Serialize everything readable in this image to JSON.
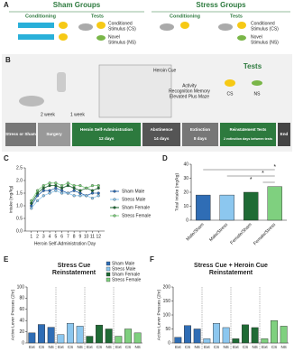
{
  "panel_labels": [
    "A",
    "B",
    "C",
    "D",
    "E",
    "F"
  ],
  "panel_a": {
    "sham_title": "Sham Groups",
    "stress_title": "Stress Groups",
    "conditioning": "Conditioning",
    "tests": "Tests",
    "legend": [
      {
        "line1": "Conditioned",
        "line2": "Stimulus (CS)"
      },
      {
        "line1": "Novel",
        "line2": "Stimulus (NS)"
      }
    ]
  },
  "panel_b": {
    "intervals": [
      "2 week",
      "1 week"
    ],
    "heroin_cue": "Heroin Cue",
    "tasks": [
      "Activity",
      "Recognition Memory",
      "Elevated Plus Maze"
    ],
    "tests_title": "Tests",
    "test_labels": [
      "CS",
      "NS"
    ],
    "stages": [
      {
        "label": "Stress or Sham"
      },
      {
        "label": "Surgery"
      },
      {
        "label": "Heroin Self-Administration",
        "duration": "12 days"
      },
      {
        "label": "Abstinence",
        "duration": "14 days"
      },
      {
        "label": "Extinction",
        "duration": "8 days"
      },
      {
        "label": "Reinstatement Tests",
        "duration": "2 extinction days between tests"
      },
      {
        "label": "End"
      }
    ]
  },
  "chart_data": [
    {
      "type": "line",
      "ylabel": "Intake (mg/kg)",
      "xlabel": "Heroin Self-Administration Day",
      "x": [
        1,
        2,
        3,
        4,
        5,
        6,
        7,
        8,
        9,
        10,
        11,
        12
      ],
      "xlim": [
        0,
        13
      ],
      "xticks": [
        1,
        2,
        3,
        4,
        5,
        6,
        7,
        8,
        9,
        10,
        11,
        12
      ],
      "ylim": [
        0,
        2.5
      ],
      "yticks": [
        {
          "value": 0,
          "label": "0.0"
        },
        0.5,
        {
          "value": 1,
          "label": "1.0"
        },
        1.5,
        {
          "value": 2,
          "label": "2.0"
        },
        2.5
      ],
      "series": [
        {
          "name": "Sham Male",
          "color": "#2f6db5",
          "values": [
            1.0,
            1.4,
            1.6,
            1.6,
            1.7,
            1.6,
            1.5,
            1.6,
            1.5,
            1.4,
            1.5,
            1.5
          ]
        },
        {
          "name": "Stress Male",
          "color": "#8cc7ef",
          "values": [
            0.9,
            1.2,
            1.4,
            1.5,
            1.6,
            1.5,
            1.5,
            1.4,
            1.4,
            1.4,
            1.3,
            1.4
          ]
        },
        {
          "name": "Sham Female",
          "color": "#1f6b35",
          "values": [
            1.1,
            1.5,
            1.7,
            1.8,
            1.8,
            1.7,
            1.8,
            1.7,
            1.6,
            1.7,
            1.6,
            1.7
          ]
        },
        {
          "name": "Stress Female",
          "color": "#7fd07f",
          "values": [
            1.2,
            1.6,
            1.8,
            1.9,
            1.9,
            1.8,
            1.9,
            1.8,
            1.8,
            1.7,
            1.8,
            1.8
          ]
        }
      ]
    },
    {
      "type": "bar",
      "ylabel": "Total Intake (mg/kg)",
      "categories": [
        "Male/Sham",
        "Male/Stress",
        "Female/Sham",
        "Female/Stress"
      ],
      "values": [
        18,
        18,
        20,
        24
      ],
      "colors": [
        "#2f6db5",
        "#8cc7ef",
        "#1f6b35",
        "#7fd07f"
      ],
      "ylim": [
        0,
        40
      ],
      "yticks": [
        0,
        10,
        20,
        30,
        40
      ],
      "annotations": [
        "*",
        "*",
        "*"
      ]
    },
    {
      "type": "grouped_bar",
      "title": "Stress Cue",
      "title2": "Reinstatement",
      "ylabel": "Active Lever Presses (2hr)",
      "legend": true,
      "categories": [
        "Ext",
        "CS",
        "NS"
      ],
      "ylim": [
        0,
        100
      ],
      "yticks": [
        0,
        20,
        40,
        60,
        80,
        100
      ],
      "series": [
        {
          "name": "Sham Male",
          "color": "#2f6db5",
          "values": [
            18,
            33,
            28
          ]
        },
        {
          "name": "Stress Male",
          "color": "#8cc7ef",
          "values": [
            15,
            35,
            30
          ]
        },
        {
          "name": "Sham Female",
          "color": "#1f6b35",
          "values": [
            12,
            32,
            25
          ]
        },
        {
          "name": "Stress Female",
          "color": "#7fd07f",
          "values": [
            12,
            25,
            18
          ]
        }
      ]
    },
    {
      "type": "grouped_bar",
      "title": "Stress Cue + Heroin Cue",
      "title2": "Reinstatement",
      "ylabel": "Active Lever Presses (2hr)",
      "categories": [
        "Ext",
        "CS",
        "NS"
      ],
      "ylim": [
        0,
        200
      ],
      "yticks": [
        0,
        50,
        100,
        150,
        200
      ],
      "series": [
        {
          "name": "Sham Male",
          "color": "#2f6db5",
          "values": [
            20,
            62,
            50
          ]
        },
        {
          "name": "Stress Male",
          "color": "#8cc7ef",
          "values": [
            15,
            70,
            55
          ]
        },
        {
          "name": "Sham Female",
          "color": "#1f6b35",
          "values": [
            15,
            65,
            55
          ]
        },
        {
          "name": "Stress Female",
          "color": "#7fd07f",
          "values": [
            15,
            80,
            60
          ]
        }
      ]
    }
  ]
}
